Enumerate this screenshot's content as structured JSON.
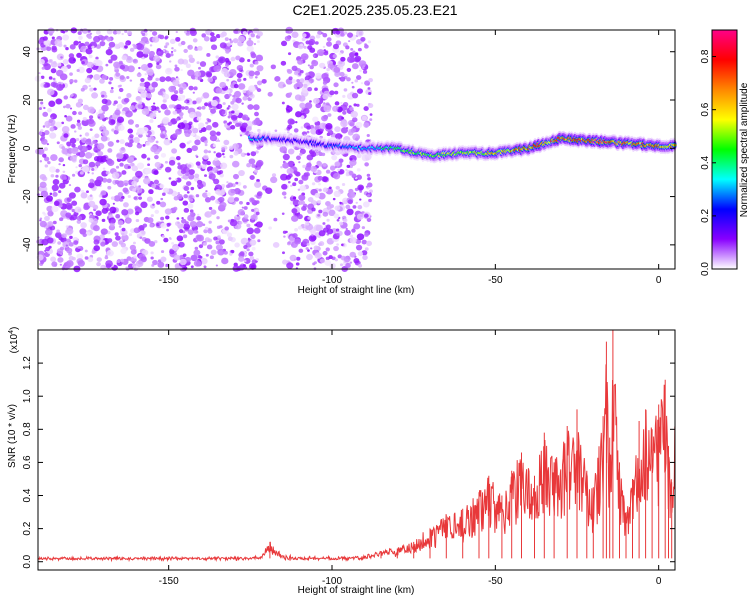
{
  "title": "C2E1.2025.235.05.23.E21",
  "chart_data": [
    {
      "type": "heatmap",
      "title": "C2E1.2025.235.05.23.E21",
      "xlabel": "Height of straight line (km)",
      "ylabel": "Frequency (Hz)",
      "xlim": [
        -190,
        5
      ],
      "ylim": [
        -50,
        49
      ],
      "x_ticks": [
        -150,
        -100,
        -50,
        0
      ],
      "y_ticks": [
        -40,
        -20,
        0,
        20,
        40
      ],
      "colorbar": {
        "label": "Normalized spectral amplitude",
        "range": [
          0,
          0.9
        ],
        "ticks": [
          0.0,
          0.2,
          0.4,
          0.6,
          0.8
        ],
        "colors": [
          "#ffffff",
          "#8800ff",
          "#0000ff",
          "#00ffff",
          "#00ff00",
          "#ffff00",
          "#ff8800",
          "#ff0000",
          "#ff0088"
        ]
      },
      "features": {
        "noise_region_x": [
          -190,
          -88
        ],
        "gap_x": [
          -122,
          -115
        ],
        "noise_amplitude": 0.1,
        "ridge": [
          {
            "x": -125,
            "f": 4,
            "a": 0.35
          },
          {
            "x": -120,
            "f": 4,
            "a": 0.25
          },
          {
            "x": -110,
            "f": 3,
            "a": 0.2
          },
          {
            "x": -100,
            "f": 1,
            "a": 0.25
          },
          {
            "x": -90,
            "f": 0,
            "a": 0.3
          },
          {
            "x": -80,
            "f": 0,
            "a": 0.45
          },
          {
            "x": -70,
            "f": -3,
            "a": 0.5
          },
          {
            "x": -60,
            "f": -2,
            "a": 0.55
          },
          {
            "x": -50,
            "f": -2,
            "a": 0.6
          },
          {
            "x": -40,
            "f": 0,
            "a": 0.75
          },
          {
            "x": -30,
            "f": 4,
            "a": 0.7
          },
          {
            "x": -20,
            "f": 3,
            "a": 0.8
          },
          {
            "x": -10,
            "f": 2,
            "a": 0.75
          },
          {
            "x": 0,
            "f": 1,
            "a": 0.7
          },
          {
            "x": 5,
            "f": 1,
            "a": 0.65
          }
        ]
      }
    },
    {
      "type": "line",
      "xlabel": "Height of straight line (km)",
      "ylabel": "SNR (10 * v/v)",
      "y_multiplier": "(x10",
      "y_multiplier_exp": "4",
      "xlim": [
        -190,
        5
      ],
      "ylim": [
        -0.05,
        1.4
      ],
      "x_ticks": [
        -150,
        -100,
        -50,
        0
      ],
      "y_ticks": [
        0.0,
        0.2,
        0.4,
        0.6,
        0.8,
        1.0,
        1.2
      ],
      "color": "#e8383a",
      "series": [
        {
          "x": [
            -190,
            -170,
            -150,
            -130,
            -122,
            -119,
            -115,
            -100,
            -90,
            -85,
            -80,
            -75,
            -70,
            -65,
            -60,
            -55,
            -52,
            -48,
            -45,
            -42,
            -38,
            -35,
            -32,
            -28,
            -25,
            -22,
            -20,
            -17,
            -16,
            -15,
            -14,
            -12,
            -10,
            -8,
            -6,
            -4,
            -2,
            0,
            2,
            3,
            4,
            5
          ],
          "y": [
            0.02,
            0.02,
            0.02,
            0.02,
            0.03,
            0.12,
            0.03,
            0.02,
            0.03,
            0.06,
            0.08,
            0.12,
            0.2,
            0.28,
            0.32,
            0.42,
            0.52,
            0.4,
            0.55,
            0.66,
            0.52,
            0.78,
            0.6,
            0.82,
            0.92,
            0.55,
            0.45,
            0.88,
            1.33,
            0.75,
            1.44,
            0.6,
            0.3,
            0.5,
            0.85,
            0.92,
            0.8,
            0.95,
            1.1,
            0.7,
            0.48,
            0.92
          ]
        }
      ]
    }
  ]
}
